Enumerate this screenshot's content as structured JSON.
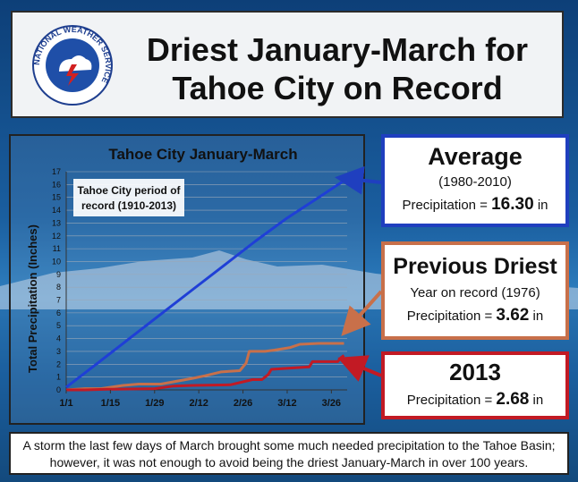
{
  "title": {
    "line1": "Driest January-March for",
    "line2": "Tahoe City on Record"
  },
  "seal": {
    "text": "NATIONAL WEATHER SERVICE"
  },
  "chart_data": {
    "type": "line",
    "title": "Tahoe City January-March",
    "ylabel": "Total Precipitation (Inches)",
    "xlabel": "",
    "annotation": [
      "Tahoe City period of",
      "record (1910-2013)"
    ],
    "ylim": [
      0,
      17
    ],
    "xlim": [
      0,
      89
    ],
    "y_ticks": [
      0,
      1,
      2,
      3,
      4,
      5,
      6,
      7,
      8,
      9,
      10,
      11,
      12,
      13,
      14,
      15,
      16,
      17
    ],
    "x_ticks": [
      {
        "label": "1/1",
        "day": 0
      },
      {
        "label": "1/15",
        "day": 14
      },
      {
        "label": "1/29",
        "day": 28
      },
      {
        "label": "2/12",
        "day": 42
      },
      {
        "label": "2/26",
        "day": 56
      },
      {
        "label": "3/12",
        "day": 70
      },
      {
        "label": "3/26",
        "day": 84
      }
    ],
    "series": [
      {
        "color": "#1f3fd6",
        "x": [
          0,
          10,
          20,
          30,
          40,
          50,
          60,
          70,
          80,
          88
        ],
        "y": [
          0.2,
          2.1,
          4.0,
          5.9,
          7.8,
          9.7,
          11.6,
          13.4,
          15.0,
          16.3
        ]
      },
      {
        "color": "#c8704a",
        "x": [
          0,
          6,
          11,
          18,
          23,
          30,
          40,
          44,
          49,
          55,
          57,
          58,
          63,
          66,
          71,
          74,
          80,
          88
        ],
        "y": [
          0,
          0.1,
          0.1,
          0.35,
          0.45,
          0.45,
          0.9,
          1.1,
          1.4,
          1.5,
          2.1,
          3.0,
          3.0,
          3.1,
          3.3,
          3.55,
          3.62,
          3.62
        ],
        "step": true
      },
      {
        "color": "#c21a24",
        "x": [
          0,
          6,
          13,
          28,
          34,
          40,
          52,
          59,
          62,
          64,
          65,
          71,
          77,
          78,
          86,
          87,
          88
        ],
        "y": [
          0,
          0,
          0.05,
          0.1,
          0.3,
          0.35,
          0.4,
          0.8,
          0.8,
          1.2,
          1.6,
          1.7,
          1.8,
          2.2,
          2.2,
          2.5,
          2.68
        ],
        "step": true
      }
    ]
  },
  "average": {
    "heading": "Average",
    "period": "(1980-2010)",
    "precip_label": "Precipitation = ",
    "precip_value": "16.30",
    "unit": "in"
  },
  "previous": {
    "heading": "Previous Driest",
    "line": "Year on record (1976)",
    "precip_label": "Precipitation = ",
    "precip_value": "3.62",
    "unit": "in"
  },
  "current": {
    "heading": "2013",
    "precip_label": "Precipitation = ",
    "precip_value": "2.68",
    "unit": "in"
  },
  "footer": {
    "text": "A storm the last few days of March brought some much needed precipitation to the Tahoe Basin; however, it was not enough to avoid being the driest January-March in over 100 years."
  },
  "colors": {
    "average": "#1f3fd6",
    "previous": "#c8704a",
    "current": "#c21a24"
  }
}
